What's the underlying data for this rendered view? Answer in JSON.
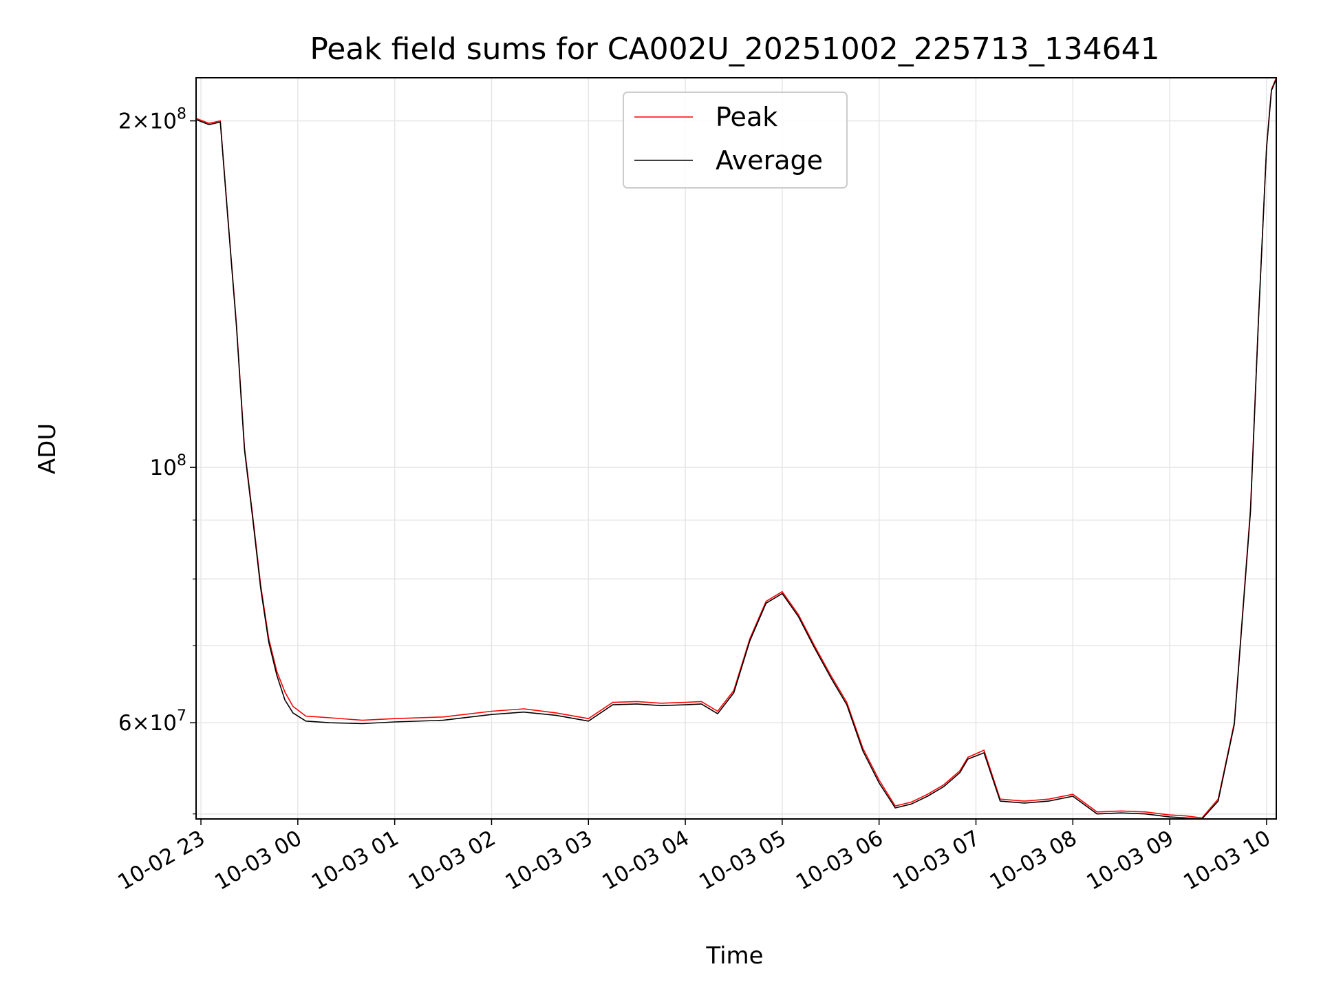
{
  "chart_data": {
    "type": "line",
    "title": "Peak field sums for CA002U_20251002_225713_134641",
    "xlabel": "Time",
    "ylabel": "ADU",
    "yscale": "log",
    "xlim": [
      "2025-10-02 22:57",
      "2025-10-03 10:06"
    ],
    "ylim": [
      49500000,
      218000000
    ],
    "grid": true,
    "legend": {
      "placement": "top-center",
      "entries": [
        "Peak",
        "Average"
      ]
    },
    "xticks": [
      "10-02 23",
      "10-03 00",
      "10-03 01",
      "10-03 02",
      "10-03 03",
      "10-03 04",
      "10-03 05",
      "10-03 06",
      "10-03 07",
      "10-03 08",
      "10-03 09",
      "10-03 10"
    ],
    "yticks": [
      {
        "value": 200000000,
        "mantissa": "2",
        "times": "×",
        "base": "10",
        "exp": "8"
      },
      {
        "value": 100000000,
        "mantissa": "",
        "times": "",
        "base": "10",
        "exp": "8"
      },
      {
        "value": 60000000,
        "mantissa": "6",
        "times": "×",
        "base": "10",
        "exp": "7"
      }
    ],
    "series": [
      {
        "name": "Peak",
        "color": "#ff0000",
        "x": [
          "2025-10-02 22:57",
          "2025-10-02 23:05",
          "2025-10-02 23:12",
          "2025-10-02 23:17",
          "2025-10-02 23:22",
          "2025-10-02 23:27",
          "2025-10-02 23:32",
          "2025-10-02 23:37",
          "2025-10-02 23:42",
          "2025-10-02 23:47",
          "2025-10-02 23:52",
          "2025-10-02 23:57",
          "2025-10-03 00:05",
          "2025-10-03 00:20",
          "2025-10-03 00:40",
          "2025-10-03 01:00",
          "2025-10-03 01:30",
          "2025-10-03 02:00",
          "2025-10-03 02:20",
          "2025-10-03 02:40",
          "2025-10-03 03:00",
          "2025-10-03 03:15",
          "2025-10-03 03:30",
          "2025-10-03 03:45",
          "2025-10-03 04:00",
          "2025-10-03 04:10",
          "2025-10-03 04:20",
          "2025-10-03 04:30",
          "2025-10-03 04:40",
          "2025-10-03 04:50",
          "2025-10-03 05:00",
          "2025-10-03 05:10",
          "2025-10-03 05:20",
          "2025-10-03 05:30",
          "2025-10-03 05:40",
          "2025-10-03 05:50",
          "2025-10-03 06:00",
          "2025-10-03 06:10",
          "2025-10-03 06:20",
          "2025-10-03 06:30",
          "2025-10-03 06:40",
          "2025-10-03 06:50",
          "2025-10-03 06:55",
          "2025-10-03 07:05",
          "2025-10-03 07:15",
          "2025-10-03 07:30",
          "2025-10-03 07:45",
          "2025-10-03 08:00",
          "2025-10-03 08:15",
          "2025-10-03 08:30",
          "2025-10-03 08:45",
          "2025-10-03 09:00",
          "2025-10-03 09:10",
          "2025-10-03 09:20",
          "2025-10-03 09:30",
          "2025-10-03 09:40",
          "2025-10-03 09:50",
          "2025-10-03 09:55",
          "2025-10-03 10:00",
          "2025-10-03 10:03",
          "2025-10-03 10:06"
        ],
        "y": [
          201000000,
          199000000,
          200000000,
          163000000,
          133000000,
          104000000,
          91000000,
          79000000,
          71000000,
          66500000,
          63800000,
          62000000,
          60800000,
          60600000,
          60300000,
          60500000,
          60700000,
          61400000,
          61700000,
          61200000,
          60500000,
          62500000,
          62600000,
          62400000,
          62500000,
          62600000,
          61400000,
          64000000,
          71000000,
          76500000,
          78000000,
          74500000,
          70000000,
          66000000,
          62500000,
          57000000,
          53500000,
          50800000,
          51200000,
          52000000,
          53000000,
          54500000,
          56000000,
          56800000,
          51500000,
          51300000,
          51500000,
          52000000,
          50200000,
          50300000,
          50200000,
          49900000,
          49800000,
          49600000,
          51500000,
          60000000,
          92000000,
          135000000,
          190000000,
          213000000,
          218000000
        ]
      },
      {
        "name": "Average",
        "color": "#000000",
        "x": [
          "2025-10-02 22:57",
          "2025-10-02 23:05",
          "2025-10-02 23:12",
          "2025-10-02 23:17",
          "2025-10-02 23:22",
          "2025-10-02 23:27",
          "2025-10-02 23:32",
          "2025-10-02 23:37",
          "2025-10-02 23:42",
          "2025-10-02 23:47",
          "2025-10-02 23:52",
          "2025-10-02 23:57",
          "2025-10-03 00:05",
          "2025-10-03 00:20",
          "2025-10-03 00:40",
          "2025-10-03 01:00",
          "2025-10-03 01:30",
          "2025-10-03 02:00",
          "2025-10-03 02:20",
          "2025-10-03 02:40",
          "2025-10-03 03:00",
          "2025-10-03 03:15",
          "2025-10-03 03:30",
          "2025-10-03 03:45",
          "2025-10-03 04:00",
          "2025-10-03 04:10",
          "2025-10-03 04:20",
          "2025-10-03 04:30",
          "2025-10-03 04:40",
          "2025-10-03 04:50",
          "2025-10-03 05:00",
          "2025-10-03 05:10",
          "2025-10-03 05:20",
          "2025-10-03 05:30",
          "2025-10-03 05:40",
          "2025-10-03 05:50",
          "2025-10-03 06:00",
          "2025-10-03 06:10",
          "2025-10-03 06:20",
          "2025-10-03 06:30",
          "2025-10-03 06:40",
          "2025-10-03 06:50",
          "2025-10-03 06:55",
          "2025-10-03 07:05",
          "2025-10-03 07:15",
          "2025-10-03 07:30",
          "2025-10-03 07:45",
          "2025-10-03 08:00",
          "2025-10-03 08:15",
          "2025-10-03 08:30",
          "2025-10-03 08:45",
          "2025-10-03 09:00",
          "2025-10-03 09:10",
          "2025-10-03 09:20",
          "2025-10-03 09:30",
          "2025-10-03 09:40",
          "2025-10-03 09:50",
          "2025-10-03 09:55",
          "2025-10-03 10:00",
          "2025-10-03 10:03",
          "2025-10-03 10:06"
        ],
        "y": [
          200500000,
          198500000,
          199500000,
          162500000,
          132500000,
          103500000,
          90500000,
          78500000,
          70500000,
          66000000,
          62800000,
          61200000,
          60200000,
          60000000,
          59900000,
          60100000,
          60300000,
          61000000,
          61300000,
          60900000,
          60200000,
          62200000,
          62300000,
          62100000,
          62200000,
          62300000,
          61100000,
          63700000,
          70700000,
          76200000,
          77700000,
          74200000,
          69700000,
          65700000,
          62200000,
          56700000,
          53200000,
          50600000,
          51000000,
          51800000,
          52800000,
          54300000,
          55800000,
          56500000,
          51300000,
          51100000,
          51300000,
          51800000,
          50000000,
          50100000,
          50000000,
          49700000,
          49600000,
          49500000,
          51300000,
          59800000,
          91500000,
          134500000,
          189500000,
          212500000,
          217500000
        ]
      }
    ]
  }
}
